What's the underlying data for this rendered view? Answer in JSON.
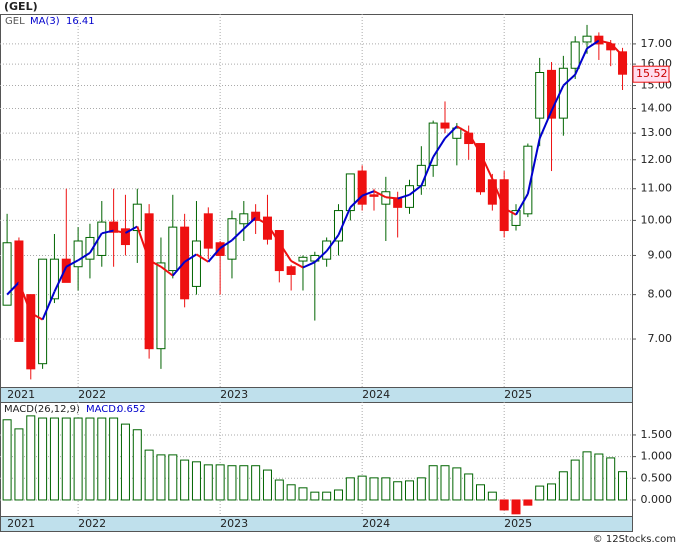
{
  "title": "(GEL)",
  "footer": "© 12Stocks.com",
  "chart_data": [
    {
      "type": "candlestick",
      "symbol": "GEL",
      "ma_label": "MA(3)",
      "log_scale": true,
      "grid": true,
      "up_color": "#006400",
      "down_color": "#ee1111",
      "ma_up_color": "#0000cc",
      "ma_down_color": "#ee1111",
      "x": [
        2021.5,
        2021.5833,
        2021.6667,
        2021.75,
        2021.8333,
        2021.9167,
        2022,
        2022.0833,
        2022.1667,
        2022.25,
        2022.3333,
        2022.4167,
        2022.5,
        2022.5833,
        2022.6667,
        2022.75,
        2022.8333,
        2022.9167,
        2023,
        2023.0833,
        2023.1667,
        2023.25,
        2023.3333,
        2023.4167,
        2023.5,
        2023.5833,
        2023.6667,
        2023.75,
        2023.8333,
        2023.9167,
        2024,
        2024.0833,
        2024.1667,
        2024.25,
        2024.3333,
        2024.4167,
        2024.5,
        2024.5833,
        2024.6667,
        2024.75,
        2024.8333,
        2024.9167,
        2025,
        2025.0833,
        2025.1667,
        2025.25,
        2025.3333,
        2025.4167,
        2025.5,
        2025.5833,
        2025.6667,
        2025.75,
        2025.8333
      ],
      "open": [
        7.75,
        9.4,
        8.0,
        6.5,
        7.9,
        8.9,
        8.7,
        8.9,
        9.0,
        9.95,
        9.75,
        9.7,
        10.2,
        6.8,
        8.6,
        9.8,
        8.2,
        10.2,
        9.35,
        8.9,
        9.9,
        10.25,
        10.1,
        9.7,
        8.7,
        8.85,
        8.85,
        8.9,
        9.4,
        10.3,
        11.6,
        10.8,
        10.5,
        10.7,
        10.4,
        11.1,
        11.8,
        13.4,
        12.8,
        13.0,
        12.6,
        11.3,
        11.3,
        9.85,
        10.2,
        13.6,
        15.7,
        13.6,
        15.8,
        17.1,
        17.4,
        17.0,
        16.6
      ],
      "high": [
        10.2,
        9.5,
        8.0,
        8.9,
        9.6,
        11.0,
        9.8,
        9.9,
        10.6,
        11.0,
        10.8,
        11.0,
        10.5,
        9.5,
        10.8,
        10.2,
        10.6,
        10.4,
        9.4,
        10.3,
        10.6,
        10.5,
        10.8,
        9.7,
        8.75,
        9.0,
        9.1,
        9.5,
        10.5,
        11.5,
        11.8,
        11.0,
        11.4,
        10.9,
        11.3,
        12.5,
        13.5,
        14.3,
        13.4,
        13.3,
        12.6,
        11.5,
        11.6,
        10.5,
        12.6,
        16.3,
        16.1,
        16.4,
        17.4,
        18.0,
        17.6,
        17.2,
        16.8
      ],
      "low": [
        7.75,
        6.95,
        6.2,
        6.4,
        7.8,
        8.3,
        8.1,
        8.4,
        8.7,
        8.7,
        9.0,
        8.8,
        6.6,
        6.4,
        8.4,
        7.7,
        8.0,
        8.9,
        8.0,
        8.4,
        9.4,
        9.6,
        9.3,
        8.3,
        8.1,
        8.1,
        7.4,
        8.7,
        9.0,
        10.0,
        10.3,
        10.3,
        9.4,
        9.5,
        10.2,
        10.8,
        11.4,
        13.0,
        11.8,
        12.0,
        10.8,
        10.3,
        9.5,
        9.7,
        10.1,
        12.5,
        11.6,
        12.9,
        15.3,
        16.5,
        16.2,
        15.9,
        14.8
      ],
      "close": [
        9.35,
        6.95,
        6.4,
        8.9,
        8.9,
        8.3,
        9.4,
        9.5,
        9.95,
        9.65,
        9.3,
        10.5,
        6.8,
        8.8,
        9.8,
        7.9,
        9.4,
        9.2,
        9.0,
        10.05,
        10.2,
        10.0,
        9.45,
        8.6,
        8.5,
        8.95,
        9.0,
        9.4,
        10.3,
        11.5,
        10.5,
        10.75,
        10.9,
        10.4,
        11.1,
        11.8,
        13.4,
        13.2,
        13.2,
        12.6,
        10.9,
        10.5,
        9.7,
        10.3,
        12.5,
        15.6,
        13.6,
        15.8,
        17.1,
        17.4,
        17.0,
        16.7,
        15.52
      ],
      "ma": [
        8.0,
        8.3,
        7.57,
        7.42,
        8.07,
        8.7,
        8.87,
        9.07,
        9.62,
        9.7,
        9.63,
        9.82,
        8.87,
        8.7,
        8.47,
        8.83,
        9.03,
        8.83,
        9.2,
        9.42,
        9.75,
        10.08,
        9.88,
        9.35,
        8.85,
        8.68,
        8.82,
        9.12,
        9.57,
        10.4,
        10.77,
        10.92,
        10.72,
        10.68,
        10.8,
        11.1,
        12.1,
        12.8,
        13.27,
        13.0,
        12.23,
        11.33,
        10.37,
        10.17,
        10.83,
        12.8,
        13.9,
        15.0,
        15.5,
        16.77,
        17.17,
        17.03,
        16.41
      ],
      "xlim": [
        2021.45,
        2025.9
      ],
      "ylim": [
        6.06,
        18.6
      ],
      "yticks": [
        {
          "value": 7,
          "label": "7.00"
        },
        {
          "value": 8,
          "label": "8.00"
        },
        {
          "value": 9,
          "label": "9.00"
        },
        {
          "value": 10,
          "label": "10.00"
        },
        {
          "value": 11,
          "label": "11.00"
        },
        {
          "value": 12,
          "label": "12.00"
        },
        {
          "value": 13,
          "label": "13.00"
        },
        {
          "value": 14,
          "label": "14.00"
        },
        {
          "value": 15,
          "label": "15.00"
        },
        {
          "value": 16,
          "label": "16.00"
        },
        {
          "value": 17,
          "label": "17.00"
        }
      ],
      "xticks": [
        {
          "value": 2021.5,
          "label": "2021"
        },
        {
          "value": 2022,
          "label": "2022"
        },
        {
          "value": 2023,
          "label": "2023"
        },
        {
          "value": 2024,
          "label": "2024"
        },
        {
          "value": 2025,
          "label": "2025"
        }
      ]
    },
    {
      "type": "bar",
      "title": "MACD(26,12,9)",
      "value_prefix": "MACD:",
      "latest": 0.652,
      "grid": true,
      "up_color": "#006400",
      "down_color": "#ee1111",
      "values": [
        1.85,
        1.64,
        1.94,
        1.89,
        1.89,
        1.89,
        1.89,
        1.89,
        1.89,
        1.89,
        1.75,
        1.62,
        1.15,
        1.04,
        1.04,
        0.92,
        0.88,
        0.81,
        0.81,
        0.79,
        0.79,
        0.79,
        0.69,
        0.46,
        0.35,
        0.28,
        0.18,
        0.18,
        0.23,
        0.51,
        0.55,
        0.51,
        0.51,
        0.42,
        0.44,
        0.51,
        0.79,
        0.79,
        0.74,
        0.6,
        0.35,
        0.18,
        -0.23,
        -0.32,
        -0.12,
        0.32,
        0.37,
        0.65,
        0.92,
        1.11,
        1.06,
        0.97,
        0.652
      ],
      "ylim": [
        -0.37,
        2.26
      ],
      "yticks": [
        {
          "value": 0,
          "label": "0.000"
        },
        {
          "value": 0.5,
          "label": "0.500"
        },
        {
          "value": 1,
          "label": "1.000"
        },
        {
          "value": 1.5,
          "label": "1.500"
        }
      ]
    }
  ]
}
